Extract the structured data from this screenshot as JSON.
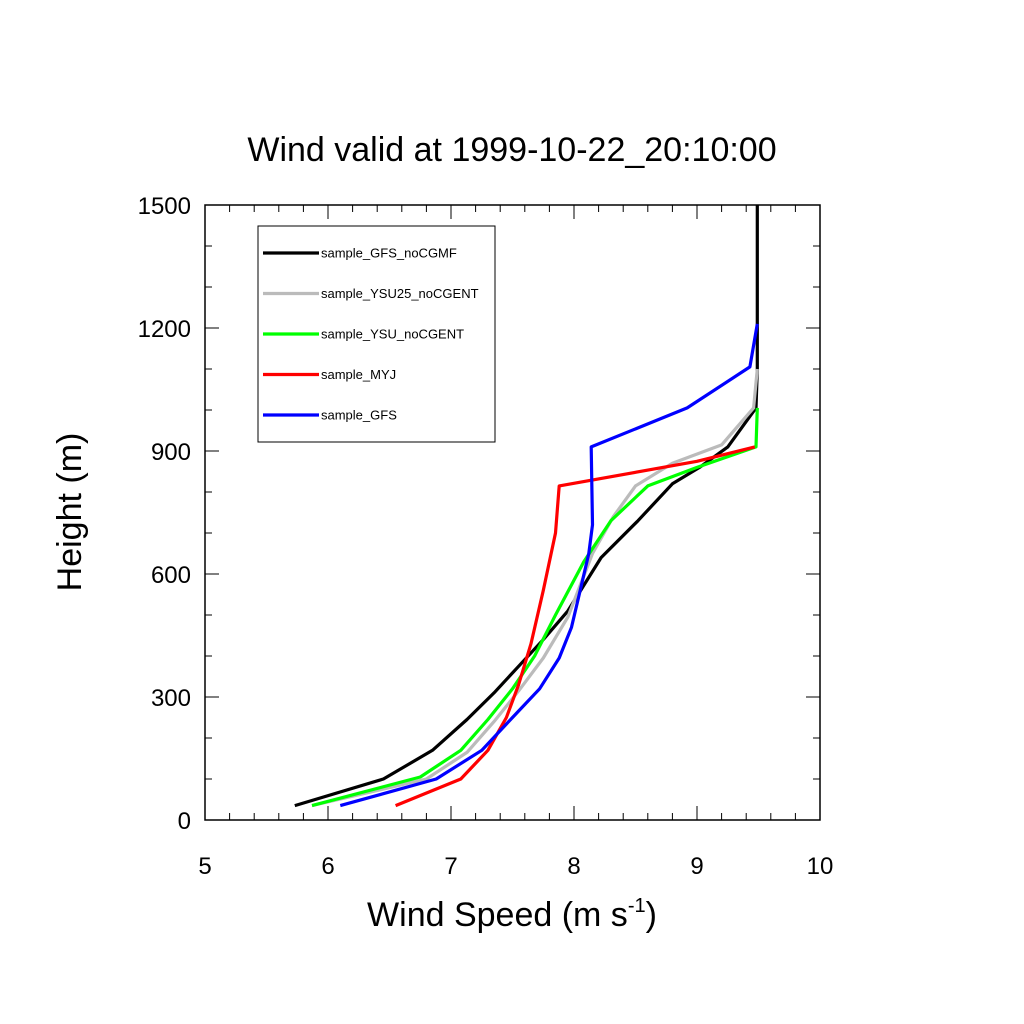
{
  "chart_data": {
    "type": "line",
    "title": "Wind valid at 1999-10-22_20:10:00",
    "xlabel": "Wind Speed (m s",
    "xlabel_superscript": "-1",
    "xlabel_suffix": ")",
    "ylabel": "Height (m)",
    "xlim": [
      5,
      10
    ],
    "ylim": [
      0,
      1500
    ],
    "x_ticks": [
      "5",
      "6",
      "7",
      "8",
      "9",
      "10"
    ],
    "y_ticks": [
      "0",
      "300",
      "600",
      "900",
      "1200",
      "1500"
    ],
    "grid": false,
    "legend_position": "top-left",
    "series": [
      {
        "name": "sample_GFS_noCGMF",
        "color": "#000000",
        "x": [
          5.73,
          6.45,
          6.85,
          7.13,
          7.35,
          7.55,
          7.75,
          7.95,
          8.22,
          8.52,
          8.8,
          9.02,
          9.25,
          9.48,
          9.49,
          9.49
        ],
        "y": [
          35,
          100,
          170,
          245,
          310,
          375,
          440,
          510,
          640,
          730,
          820,
          860,
          910,
          1005,
          1100,
          1500
        ]
      },
      {
        "name": "sample_YSU25_noCGENT",
        "color": "#bbbbbb",
        "x": [
          5.87,
          6.8,
          7.13,
          7.35,
          7.55,
          7.75,
          7.95,
          8.15,
          8.32,
          8.5,
          8.8,
          9.2,
          9.46,
          9.49
        ],
        "y": [
          35,
          100,
          165,
          240,
          315,
          395,
          495,
          650,
          740,
          815,
          870,
          915,
          1005,
          1100
        ]
      },
      {
        "name": "sample_YSU_noCGENT",
        "color": "#00ff00",
        "x": [
          5.87,
          6.75,
          7.08,
          7.3,
          7.5,
          7.68,
          7.85,
          8.08,
          8.3,
          8.6,
          9.0,
          9.48,
          9.49
        ],
        "y": [
          35,
          105,
          170,
          245,
          320,
          400,
          500,
          630,
          730,
          815,
          860,
          910,
          1005
        ]
      },
      {
        "name": "sample_MYJ",
        "color": "#ff0000",
        "x": [
          6.55,
          7.08,
          7.3,
          7.45,
          7.55,
          7.65,
          7.75,
          7.85,
          7.88,
          9.0,
          9.47
        ],
        "y": [
          35,
          100,
          170,
          250,
          330,
          430,
          560,
          700,
          815,
          875,
          910
        ]
      },
      {
        "name": "sample_GFS",
        "color": "#0000ff",
        "x": [
          6.1,
          6.88,
          7.25,
          7.5,
          7.72,
          7.88,
          7.98,
          8.05,
          8.12,
          8.15,
          8.14,
          8.92,
          9.43,
          9.49
        ],
        "y": [
          35,
          100,
          170,
          250,
          320,
          395,
          470,
          560,
          650,
          720,
          910,
          1005,
          1105,
          1210
        ]
      }
    ]
  }
}
